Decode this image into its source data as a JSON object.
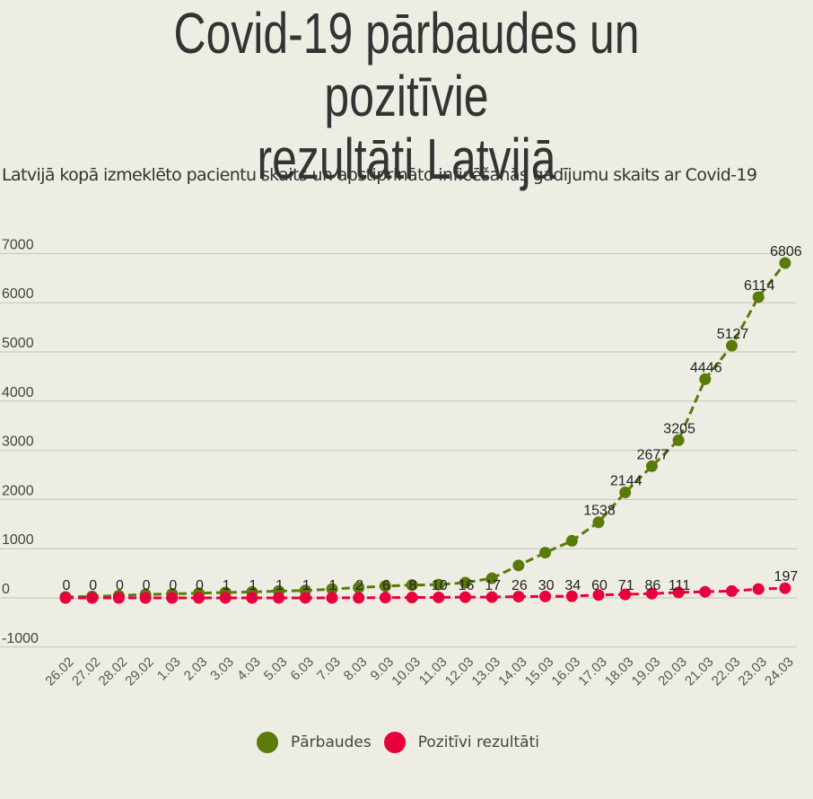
{
  "title_line1": "Covid-19 pārbaudes un pozitīvie",
  "title_line2": "rezultāti Latvijā",
  "subtitle": "Latvijā kopā izmeklēto pacientu skaits un apstiprināto inficēšanās gadījumu skaits ar Covid-19",
  "legend": [
    {
      "label": "Pārbaudes",
      "color": "#5a7a0a"
    },
    {
      "label": "Pozitīvi rezultāti",
      "color": "#e8003d"
    }
  ],
  "chart_data": {
    "type": "line",
    "title": "Covid-19 pārbaudes un pozitīvie rezultāti Latvijā",
    "subtitle": "Latvijā kopā izmeklēto pacientu skaits un apstiprināto inficēšanās gadījumu skaits ar Covid-19",
    "ylim": [
      -1000,
      7000
    ],
    "yticks": [
      -1000,
      0,
      1000,
      2000,
      3000,
      4000,
      5000,
      6000,
      7000
    ],
    "grid": true,
    "legend_position": "bottom",
    "categories": [
      "26.02",
      "27.02",
      "28.02",
      "29.02",
      "1.03",
      "2.03",
      "3.03",
      "4.03",
      "5.03",
      "6.03",
      "7.03",
      "8.03",
      "9.03",
      "10.03",
      "11.03",
      "12.03",
      "13.03",
      "14.03",
      "15.03",
      "16.03",
      "17.03",
      "18.03",
      "19.03",
      "20.03",
      "21.03",
      "22.03",
      "23.03",
      "24.03"
    ],
    "series": [
      {
        "name": "Pārbaudes",
        "color": "#5a7a0a",
        "values": [
          20,
          30,
          45,
          70,
          80,
          95,
          110,
          120,
          140,
          150,
          180,
          210,
          240,
          260,
          270,
          310,
          400,
          660,
          920,
          1160,
          1538,
          2144,
          2677,
          3205,
          4446,
          5127,
          6114,
          6806
        ],
        "labels": [
          "",
          "",
          "",
          "",
          "",
          "",
          "",
          "",
          "",
          "",
          "",
          "",
          "",
          "",
          "",
          "",
          "",
          "",
          "",
          "",
          "1538",
          "2144",
          "2677",
          "3205",
          "4446",
          "5127",
          "6114",
          "6806"
        ]
      },
      {
        "name": "Pozitīvi rezultāti",
        "color": "#e8003d",
        "values": [
          0,
          0,
          0,
          0,
          0,
          0,
          1,
          1,
          1,
          1,
          1,
          2,
          6,
          8,
          10,
          16,
          17,
          26,
          30,
          34,
          60,
          71,
          86,
          111,
          124,
          139,
          180,
          197
        ],
        "labels": [
          "0",
          "0",
          "0",
          "0",
          "0",
          "0",
          "1",
          "1",
          "1",
          "1",
          "1",
          "2",
          "6",
          "8",
          "10",
          "16",
          "17",
          "26",
          "30",
          "34",
          "60",
          "71",
          "86",
          "111",
          "",
          "",
          "",
          "197"
        ]
      }
    ]
  }
}
